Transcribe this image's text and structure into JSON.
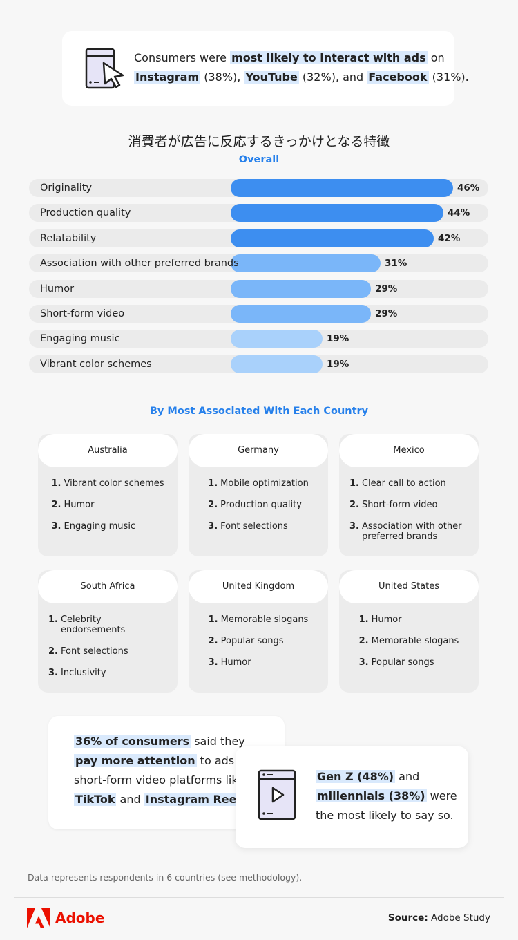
{
  "header": {
    "lines": [
      [
        "Consumers were ",
        {
          "strong": "most likely to interact with ads"
        },
        " on"
      ],
      [
        {
          "strong": "Instagram"
        },
        " (38%), ",
        {
          "strong": "YouTube"
        },
        " (32%), and ",
        {
          "strong": "Facebook"
        },
        " (31%)."
      ]
    ]
  },
  "chart_data": {
    "type": "bar",
    "orientation": "horizontal",
    "title": "消費者が広告に反応するきっかけとなる特徴",
    "subtitle": "Overall",
    "categories": [
      "Originality",
      "Production quality",
      "Relatability",
      "Association with other preferred brands",
      "Humor",
      "Short-form video",
      "Engaging music",
      "Vibrant color schemes"
    ],
    "values": [
      46,
      44,
      42,
      31,
      29,
      29,
      19,
      19
    ],
    "value_labels": [
      "46%",
      "44%",
      "42%",
      "31%",
      "29%",
      "29%",
      "19%",
      "19%"
    ],
    "colors": [
      "#3d8ef0",
      "#3d8ef0",
      "#3d8ef0",
      "#7ab6f9",
      "#7ab6f9",
      "#7ab6f9",
      "#a9d1fb",
      "#a9d1fb"
    ]
  },
  "countries": {
    "title": "By Most Associated With Each Country",
    "cards": [
      {
        "name": "Australia",
        "items": [
          [
            "1.",
            "Vibrant color schemes"
          ],
          [
            "2.",
            "Humor"
          ],
          [
            "3.",
            "Engaging music"
          ]
        ]
      },
      {
        "name": "Germany",
        "items": [
          [
            "1.",
            "Mobile optimization"
          ],
          [
            "2.",
            "Production quality"
          ],
          [
            "3.",
            "Font selections"
          ]
        ]
      },
      {
        "name": "Mexico",
        "items": [
          [
            "1.",
            "Clear call to action"
          ],
          [
            "2.",
            "Short-form video"
          ],
          [
            "3.",
            "Association with other preferred brands"
          ]
        ]
      },
      {
        "name": "South Africa",
        "items": [
          [
            "1.",
            "Celebrity endorsements"
          ],
          [
            "2.",
            "Font selections"
          ],
          [
            "3.",
            "Inclusivity"
          ]
        ]
      },
      {
        "name": "United Kingdom",
        "items": [
          [
            "1.",
            "Memorable slogans"
          ],
          [
            "2.",
            "Popular songs"
          ],
          [
            "3.",
            "Humor"
          ]
        ]
      },
      {
        "name": "United States",
        "items": [
          [
            "1.",
            "Humor"
          ],
          [
            "2.",
            "Memorable slogans"
          ],
          [
            "3.",
            "Popular songs"
          ]
        ]
      }
    ]
  },
  "callout": {
    "left": [
      [
        {
          "strong": "36% of consumers"
        },
        " said they"
      ],
      [
        {
          "strong": "pay more attention"
        },
        " to ads on"
      ],
      [
        "short-form video platforms like"
      ],
      [
        {
          "strong": "TikTok"
        },
        " and ",
        {
          "strong": "Instagram Reels"
        },
        "."
      ]
    ],
    "right": [
      [
        {
          "strong": "Gen Z (48%)"
        },
        " and"
      ],
      [
        {
          "strong": "millennials (38%)"
        },
        " were"
      ],
      [
        "the most likely to say so."
      ]
    ]
  },
  "footer": {
    "note": "Data represents respondents in 6 countries (see methodology).",
    "brand": "Adobe",
    "source_label": "Source:",
    "source": " Adobe Study"
  }
}
